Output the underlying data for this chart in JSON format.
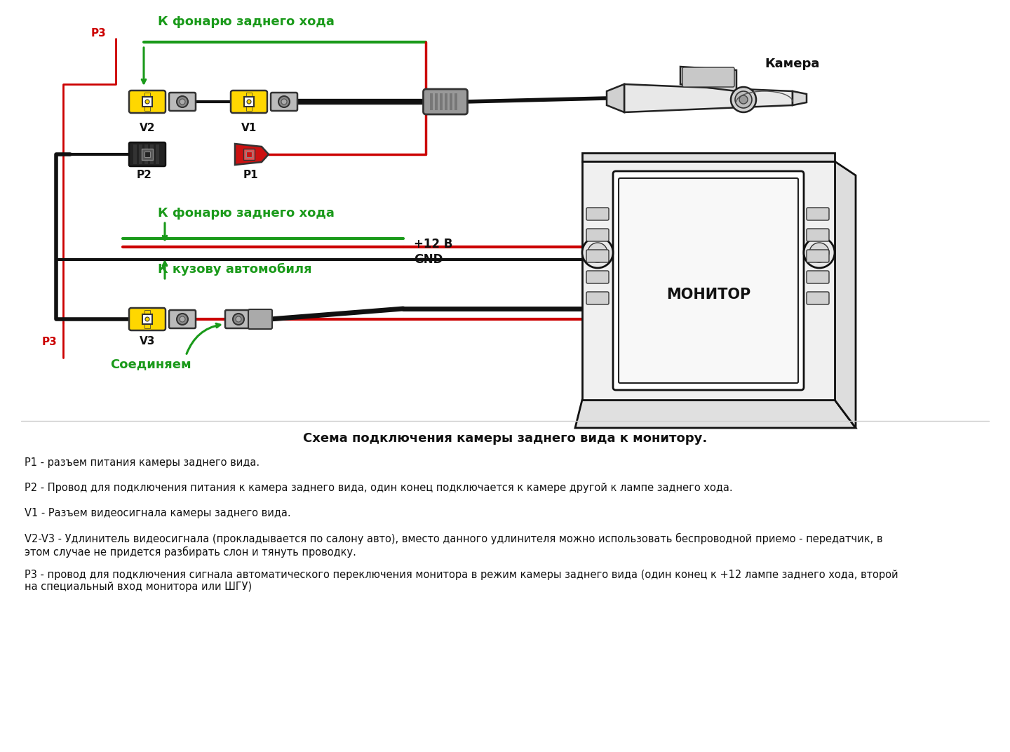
{
  "bg_color": "#ffffff",
  "title_diagram": "Схема подключения камеры заднего вида к монитору.",
  "label_camera": "Камера",
  "label_monitor": "МОНИТОР",
  "label_v1": "V1",
  "label_v2": "V2",
  "label_v3": "V3",
  "label_p1": "P1",
  "label_p2": "P2",
  "label_p3_red": "P3",
  "label_12v": "+12 В",
  "label_gnd": "GND",
  "label_fonaru1": "К фонарю заднего хода",
  "label_fonaru2": "К фонарю заднего хода",
  "label_kuzovu": "К кузову автомобиля",
  "label_soedinaem": "Соединяем",
  "green_color": "#1a9a1a",
  "red_color": "#cc0000",
  "black_color": "#111111",
  "yellow_color": "#FFD700",
  "gray_color": "#888888",
  "light_gray": "#cccccc",
  "desc_p1": "P1 - разъем питания камеры заднего вида.",
  "desc_p2": "P2 - Провод для подключения питания к камера заднего вида, один конец подключается к камере другой к лампе заднего хода.",
  "desc_v1": "V1 - Разъем видеосигнала камеры заднего вида.",
  "desc_v2v3": "V2-V3 - Удлинитель видеосигнала (прокладывается по салону авто), вместо данного удлинителя можно использовать беспроводной приемо - передатчик, в\nэтом случае не придется разбирать слон и тянуть проводку.",
  "desc_p3": "Р3 - провод для подключения сигнала автоматического переключения монитора в режим камеры заднего вида (один конец к +12 лампе заднего хода, второй\nна специальный вход монитора или ШГУ)"
}
